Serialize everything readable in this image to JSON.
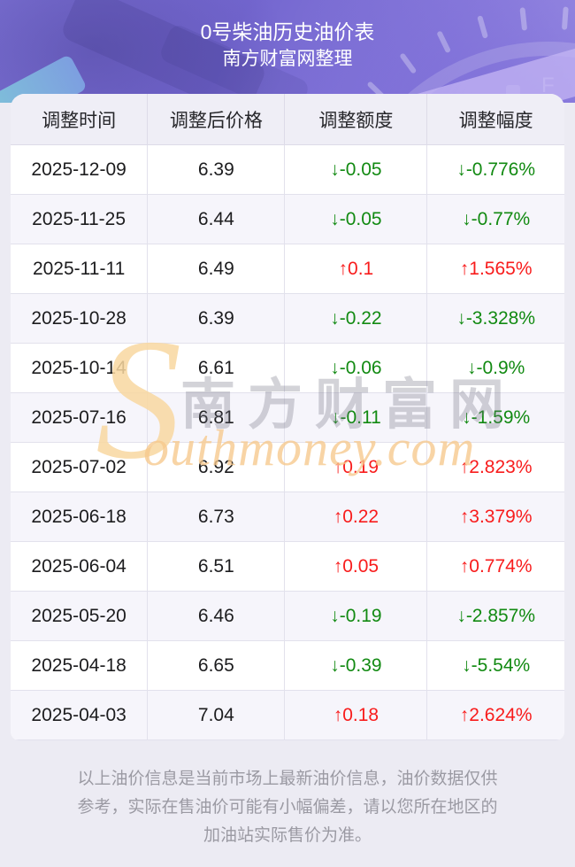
{
  "header": {
    "title": "0号柴油历史油价表",
    "subtitle": "南方财富网整理"
  },
  "chart_data": {
    "type": "table",
    "title": "0号柴油历史油价表",
    "columns": [
      "调整时间",
      "调整后价格",
      "调整额度",
      "调整幅度"
    ],
    "rows": [
      {
        "date": "2025-12-09",
        "price": "6.39",
        "change": "↓-0.05",
        "pct": "↓-0.776%",
        "direction": "down"
      },
      {
        "date": "2025-11-25",
        "price": "6.44",
        "change": "↓-0.05",
        "pct": "↓-0.77%",
        "direction": "down"
      },
      {
        "date": "2025-11-11",
        "price": "6.49",
        "change": "↑0.1",
        "pct": "↑1.565%",
        "direction": "up"
      },
      {
        "date": "2025-10-28",
        "price": "6.39",
        "change": "↓-0.22",
        "pct": "↓-3.328%",
        "direction": "down"
      },
      {
        "date": "2025-10-14",
        "price": "6.61",
        "change": "↓-0.06",
        "pct": "↓-0.9%",
        "direction": "down"
      },
      {
        "date": "2025-07-16",
        "price": "6.81",
        "change": "↓-0.11",
        "pct": "↓-1.59%",
        "direction": "down"
      },
      {
        "date": "2025-07-02",
        "price": "6.92",
        "change": "↑0.19",
        "pct": "↑2.823%",
        "direction": "up"
      },
      {
        "date": "2025-06-18",
        "price": "6.73",
        "change": "↑0.22",
        "pct": "↑3.379%",
        "direction": "up"
      },
      {
        "date": "2025-06-04",
        "price": "6.51",
        "change": "↑0.05",
        "pct": "↑0.774%",
        "direction": "up"
      },
      {
        "date": "2025-05-20",
        "price": "6.46",
        "change": "↓-0.19",
        "pct": "↓-2.857%",
        "direction": "down"
      },
      {
        "date": "2025-04-18",
        "price": "6.65",
        "change": "↓-0.39",
        "pct": "↓-5.54%",
        "direction": "down"
      },
      {
        "date": "2025-04-03",
        "price": "7.04",
        "change": "↑0.18",
        "pct": "↑2.624%",
        "direction": "up"
      }
    ]
  },
  "watermark": {
    "s_glyph": "S",
    "cn": "南方财富网",
    "en": "outhmoney.com"
  },
  "footer": {
    "text": "以上油价信息是当前市场上最新油价信息，油价数据仅供参考，实际在售油价可能有小幅偏差，请以您所在地区的加油站实际售价为准。"
  },
  "colors": {
    "up_red": "#f81c1c",
    "down_green": "#128a12",
    "hero_purple": "#7b70d4",
    "header_row_bg": "#efeef6",
    "alt_row_bg": "#f6f5fb",
    "watermark_orange": "#f6c88c"
  },
  "decor": {
    "gauge_letter": "F"
  }
}
